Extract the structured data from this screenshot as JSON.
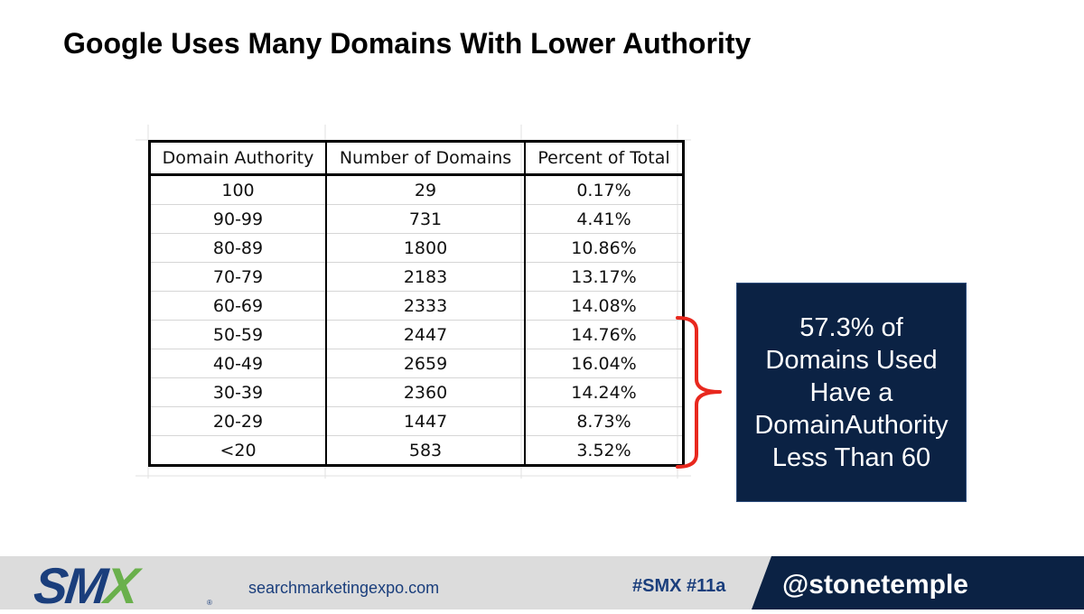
{
  "slide": {
    "title": "Google Uses Many Domains With Lower Authority"
  },
  "table": {
    "headers": [
      "Domain Authority",
      "Number of Domains",
      "Percent of Total"
    ],
    "rows": [
      [
        "100",
        "29",
        "0.17%"
      ],
      [
        "90-99",
        "731",
        "4.41%"
      ],
      [
        "80-89",
        "1800",
        "10.86%"
      ],
      [
        "70-79",
        "2183",
        "13.17%"
      ],
      [
        "60-69",
        "2333",
        "14.08%"
      ],
      [
        "50-59",
        "2447",
        "14.76%"
      ],
      [
        "40-49",
        "2659",
        "16.04%"
      ],
      [
        "30-39",
        "2360",
        "14.24%"
      ],
      [
        "20-29",
        "1447",
        "8.73%"
      ],
      [
        "<20",
        "583",
        "3.52%"
      ]
    ]
  },
  "callout": {
    "lines": [
      "57.3% of",
      "Domains Used",
      "Have a",
      "DomainAuthority",
      "Less Than 60"
    ]
  },
  "footer": {
    "logo_text": "SM",
    "logo_x": "X",
    "logo_reg": "®",
    "site_url": "searchmarketingexpo.com",
    "hashtag": "#SMX #11a",
    "handle": "@stonetemple"
  },
  "colors": {
    "navy": "#0b2244",
    "brand_blue": "#1a3e7c",
    "brand_green": "#6ab04c",
    "bracket_red": "#e8281e",
    "footer_gray": "#dcdcdc"
  }
}
